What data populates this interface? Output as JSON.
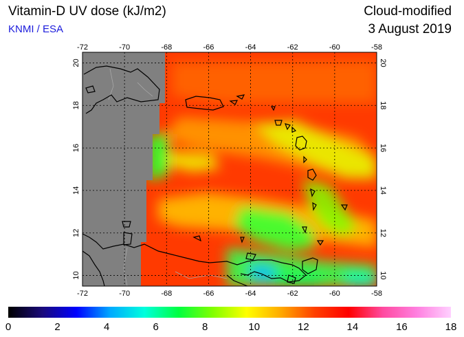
{
  "header": {
    "title": "Vitamin-D UV dose (kJ/m2)",
    "credit": "KNMI / ESA",
    "mode": "Cloud-modified",
    "date": "3 August 2019"
  },
  "map": {
    "lon_range": [
      -72,
      -58
    ],
    "lat_range": [
      9.5,
      20.5
    ],
    "lon_ticks": [
      "-72",
      "-70",
      "-68",
      "-66",
      "-64",
      "-62",
      "-60",
      "-58"
    ],
    "lat_ticks": [
      "10",
      "12",
      "14",
      "16",
      "18",
      "20"
    ],
    "grid": true,
    "no_data_color": "#808080",
    "coastline_color": "#000000"
  },
  "colorbar": {
    "min": 0,
    "max": 18,
    "labels": [
      "0",
      "2",
      "4",
      "6",
      "8",
      "10",
      "12",
      "14",
      "16",
      "18"
    ],
    "stops": [
      "#000000",
      "#1a0a7a",
      "#0000ff",
      "#00aaff",
      "#00ffdd",
      "#00ff40",
      "#80ff00",
      "#ffff00",
      "#ffaa00",
      "#ff4000",
      "#ff0000",
      "#ff4aa0",
      "#ff80e0",
      "#ffd0ff"
    ]
  }
}
